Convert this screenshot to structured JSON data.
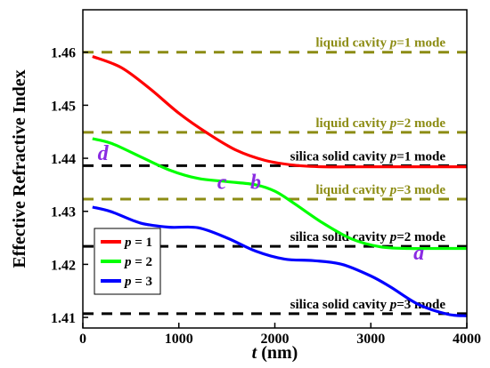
{
  "chart_data": {
    "type": "line",
    "xlabel_var": "t",
    "xlabel_unit": " (nm)",
    "ylabel": "Effective Refractive Index",
    "xlim": [
      0,
      4000
    ],
    "ylim": [
      1.408,
      1.468
    ],
    "xticks": [
      0,
      1000,
      2000,
      3000,
      4000
    ],
    "yticks": [
      1.41,
      1.42,
      1.43,
      1.44,
      1.45,
      1.46
    ],
    "xtick_labels": [
      "0",
      "1000",
      "2000",
      "3000",
      "4000"
    ],
    "ytick_labels": [
      "1.41",
      "1.42",
      "1.43",
      "1.44",
      "1.45",
      "1.46"
    ],
    "grid": false,
    "legend_position": "bottom-left",
    "series": [
      {
        "name": "p = 1",
        "legend_var": "p",
        "legend_rest": " = 1",
        "color": "#ff0000",
        "x": [
          100,
          400,
          700,
          1000,
          1300,
          1600,
          1900,
          2200,
          2500,
          3000,
          3500,
          4000
        ],
        "y": [
          1.4592,
          1.4571,
          1.4531,
          1.4485,
          1.4447,
          1.4415,
          1.4396,
          1.4387,
          1.4384,
          1.4384,
          1.4384,
          1.4384
        ]
      },
      {
        "name": "p = 2",
        "legend_var": "p",
        "legend_rest": " = 2",
        "color": "#00ff00",
        "x": [
          100,
          300,
          600,
          900,
          1200,
          1500,
          1800,
          2000,
          2200,
          2500,
          2800,
          3100,
          3400,
          3700,
          4000
        ],
        "y": [
          1.4437,
          1.4428,
          1.4403,
          1.4378,
          1.4362,
          1.4356,
          1.435,
          1.4338,
          1.4315,
          1.4278,
          1.4248,
          1.4233,
          1.423,
          1.423,
          1.423
        ]
      },
      {
        "name": "p = 3",
        "legend_var": "p",
        "legend_rest": " = 3",
        "color": "#0000ff",
        "x": [
          100,
          300,
          600,
          900,
          1200,
          1500,
          1800,
          2100,
          2400,
          2700,
          3000,
          3200,
          3500,
          3800,
          4000
        ],
        "y": [
          1.4308,
          1.4299,
          1.4278,
          1.427,
          1.4269,
          1.425,
          1.4225,
          1.421,
          1.4207,
          1.42,
          1.4178,
          1.4158,
          1.4124,
          1.4106,
          1.4103
        ]
      }
    ],
    "reference_lines": [
      {
        "label_pre": "liquid cavity ",
        "label_var": "p",
        "label_post": "=1 mode",
        "y": 1.46,
        "color": "#8c8c14"
      },
      {
        "label_pre": "liquid cavity ",
        "label_var": "p",
        "label_post": "=2 mode",
        "y": 1.4449,
        "color": "#8c8c14"
      },
      {
        "label_pre": "silica solid cavity ",
        "label_var": "p",
        "label_post": "=1 mode",
        "y": 1.4386,
        "color": "#000000"
      },
      {
        "label_pre": "liquid cavity ",
        "label_var": "p",
        "label_post": "=3 mode",
        "y": 1.4323,
        "color": "#8c8c14"
      },
      {
        "label_pre": "silica solid cavity ",
        "label_var": "p",
        "label_post": "=2 mode",
        "y": 1.4234,
        "color": "#000000"
      },
      {
        "label_pre": "silica solid cavity ",
        "label_var": "p",
        "label_post": "=3 mode",
        "y": 1.4107,
        "color": "#000000"
      }
    ],
    "annotations": [
      {
        "text": "d",
        "x": 210,
        "y": 1.4397,
        "color": "#8a2be2"
      },
      {
        "text": "c",
        "x": 1450,
        "y": 1.4342,
        "color": "#8a2be2"
      },
      {
        "text": "b",
        "x": 1800,
        "y": 1.4342,
        "color": "#8a2be2"
      },
      {
        "text": "a",
        "x": 3500,
        "y": 1.4209,
        "color": "#8a2be2"
      }
    ]
  }
}
